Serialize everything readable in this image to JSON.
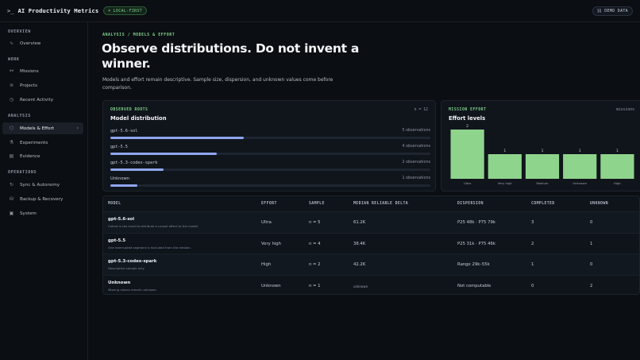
{
  "app": {
    "prompt": ">_",
    "title": "AI Productivity Metrics",
    "local_badge": "LOCAL-FIRST",
    "demo_badge": "DEMO DATA",
    "colors": {
      "accent_green": "#7fd08a",
      "bar_blue": "#8fa6f0",
      "background": "#0b0e12"
    }
  },
  "sidebar": {
    "sections": [
      {
        "label": "OVERVIEW",
        "items": [
          {
            "label": "Overview",
            "icon": "activity-icon"
          }
        ]
      },
      {
        "label": "WORK",
        "items": [
          {
            "label": "Missions",
            "icon": "route-icon"
          },
          {
            "label": "Projects",
            "icon": "stack-icon"
          },
          {
            "label": "Recent Activity",
            "icon": "clock-icon"
          }
        ]
      },
      {
        "label": "ANALYSIS",
        "items": [
          {
            "label": "Models & Effort",
            "icon": "cube-icon",
            "active": true
          },
          {
            "label": "Experiments",
            "icon": "flask-icon"
          },
          {
            "label": "Evidence",
            "icon": "file-icon"
          }
        ]
      },
      {
        "label": "OPERATIONS",
        "items": [
          {
            "label": "Sync & Autonomy",
            "icon": "sync-icon"
          },
          {
            "label": "Backup & Recovery",
            "icon": "database-icon"
          },
          {
            "label": "System",
            "icon": "terminal-icon"
          }
        ]
      }
    ]
  },
  "main": {
    "breadcrumb": "ANALYSIS / MODELS & EFFORT",
    "headline_line1": "Observe distributions. Do not invent a",
    "headline_line2": "winner.",
    "lede": "Models and effort remain descriptive. Sample size, dispersion, and unknown values come before comparison."
  },
  "distribution": {
    "kicker": "OBSERVED ROOTS",
    "title": "Model distribution",
    "meta": "n = 12",
    "rows": [
      {
        "name": "gpt-5.6-sol",
        "observations": "5 observations",
        "share": 0.4167
      },
      {
        "name": "gpt-5.5",
        "observations": "4 observations",
        "share": 0.3333
      },
      {
        "name": "gpt-5.3-codex-spark",
        "observations": "2 observations",
        "share": 0.1667
      },
      {
        "name": "Unknown",
        "observations": "1 observations",
        "share": 0.0833
      }
    ]
  },
  "effort": {
    "kicker": "MISSION EFFORT",
    "title": "Effort levels",
    "meta": "missions"
  },
  "chart_data": {
    "type": "bar",
    "categories": [
      "Ultra",
      "Very high",
      "Medium",
      "Unknown",
      "High"
    ],
    "values": [
      2,
      1,
      1,
      1,
      1
    ],
    "title": "Effort levels",
    "xlabel": "",
    "ylabel": "",
    "ylim": [
      0,
      2
    ],
    "grid": false,
    "bar_color": "#8fd48c"
  },
  "table": {
    "headers": [
      "MODEL",
      "EFFORT",
      "SAMPLE",
      "MEDIAN RELIABLE DELTA",
      "DISPERSION",
      "COMPLETED",
      "UNKNOWN"
    ],
    "rows": [
      {
        "model": "gpt-5.6-sol",
        "note": "Cohort is too small to attribute a causal effect to the model.",
        "effort": "Ultra",
        "sample": "n = 5",
        "delta": "61.2K",
        "dispersion": "P25 48k · P75 79k",
        "completed": "3",
        "unknown": "0"
      },
      {
        "model": "gpt-5.5",
        "note": "One interrupted segment is excluded from the median.",
        "effort": "Very high",
        "sample": "n = 4",
        "delta": "38.4K",
        "dispersion": "P25 31k · P75 46k",
        "completed": "2",
        "unknown": "1"
      },
      {
        "model": "gpt-5.3-codex-spark",
        "note": "Descriptive sample only.",
        "effort": "High",
        "sample": "n = 2",
        "delta": "42.2K",
        "dispersion": "Range 29k–55k",
        "completed": "1",
        "unknown": "0"
      },
      {
        "model": "Unknown",
        "note": "Missing values remain unknown.",
        "effort": "Unknown",
        "sample": "n = 1",
        "delta": "unknown",
        "dispersion": "Not computable",
        "completed": "0",
        "unknown": "2"
      }
    ]
  }
}
